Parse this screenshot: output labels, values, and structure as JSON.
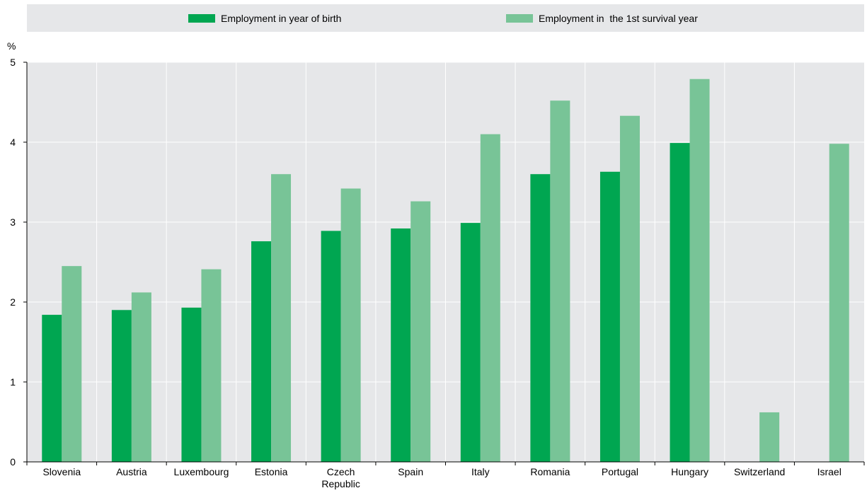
{
  "chart_data": {
    "type": "bar",
    "title": "",
    "xlabel": "",
    "ylabel": "%",
    "ylim": [
      0,
      5
    ],
    "yticks": [
      0,
      1,
      2,
      3,
      4,
      5
    ],
    "grid": true,
    "legend_position": "top",
    "categories": [
      "Slovenia",
      "Austria",
      "Luxembourg",
      "Estonia",
      "Czech Republic",
      "Spain",
      "Italy",
      "Romania",
      "Portugal",
      "Hungary",
      "Switzerland",
      "Israel"
    ],
    "series": [
      {
        "name": "Employment in year of birth",
        "color": "#00a651",
        "values": [
          1.84,
          1.9,
          1.93,
          2.76,
          2.89,
          2.92,
          2.99,
          3.6,
          3.63,
          3.99,
          null,
          null
        ]
      },
      {
        "name": "Employment in  the 1st survival year",
        "color": "#78c497",
        "values": [
          2.45,
          2.12,
          2.41,
          3.6,
          3.42,
          3.26,
          4.1,
          4.52,
          4.33,
          4.79,
          0.62,
          3.98
        ]
      }
    ]
  }
}
